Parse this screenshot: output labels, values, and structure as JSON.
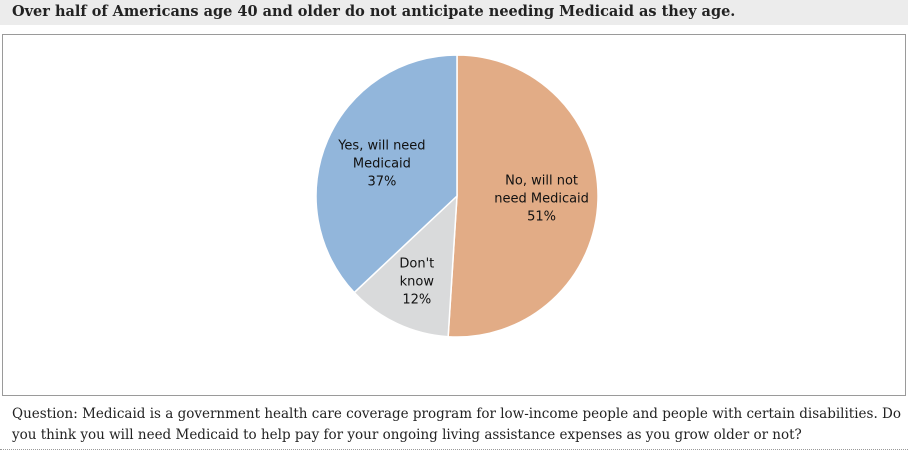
{
  "header": {
    "title": "Over half of Americans age 40 and older do not anticipate needing Medicaid as they age."
  },
  "chart_data": {
    "type": "pie",
    "title": "",
    "slices": [
      {
        "label_lines": [
          "No, will not",
          "need Medicaid"
        ],
        "value": 51,
        "value_label": "51%",
        "color": "#e2ac86"
      },
      {
        "label_lines": [
          "Don't",
          "know"
        ],
        "value": 12,
        "value_label": "12%",
        "color": "#d9dadb"
      },
      {
        "label_lines": [
          "Yes, will need",
          "Medicaid"
        ],
        "value": 37,
        "value_label": "37%",
        "color": "#92b6db"
      }
    ],
    "start_angle_deg": 0,
    "direction": "clockwise",
    "stroke_color": "#ffffff"
  },
  "footer": {
    "question": "Question: Medicaid is a government health care coverage program for low-income people and people with certain disabilities. Do you think you will need Medicaid to help pay for your ongoing living assistance expenses as you grow older or not?"
  }
}
